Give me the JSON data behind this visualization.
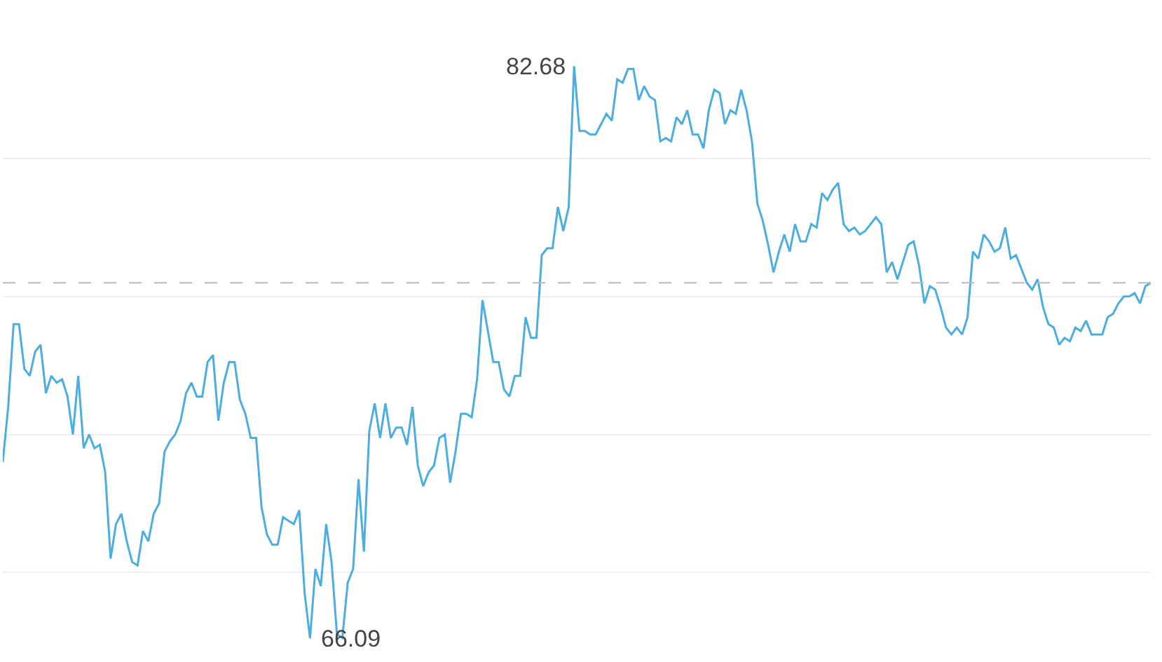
{
  "chart_data": {
    "type": "line",
    "categories": [
      null,
      null,
      null,
      null,
      null,
      null,
      null,
      null,
      null,
      null,
      null,
      null,
      null,
      null,
      null,
      null,
      null,
      null,
      null,
      null,
      null,
      null,
      null,
      null,
      null,
      null,
      null,
      null,
      null,
      null,
      null,
      null,
      null,
      null,
      null,
      null,
      null,
      null,
      null,
      null,
      null,
      null,
      null,
      null,
      null,
      null,
      null,
      null,
      null,
      null,
      null,
      null,
      null,
      null,
      null,
      null,
      null,
      null,
      null,
      null,
      null,
      null,
      null,
      null,
      null,
      null,
      null,
      null,
      null,
      null,
      null,
      null,
      null,
      null,
      null,
      null,
      null,
      null,
      null,
      null,
      null,
      null,
      null,
      null,
      null,
      null,
      null,
      null,
      null,
      null,
      null,
      null,
      null,
      null,
      null,
      null,
      null,
      null,
      null,
      null,
      null,
      null,
      null,
      null,
      null,
      null,
      null,
      null,
      null,
      null,
      null,
      null,
      null,
      null,
      null,
      null,
      null,
      null,
      null,
      null,
      null,
      null,
      null,
      null,
      null,
      null,
      null,
      null,
      null,
      null,
      null,
      null,
      null,
      null,
      null,
      null,
      null,
      null,
      null,
      null,
      null,
      null,
      null,
      null,
      null,
      null,
      null,
      null,
      null,
      null,
      null,
      null,
      null,
      null,
      null,
      null,
      null,
      null,
      null,
      null,
      null,
      null,
      null,
      null,
      null,
      null,
      null,
      null,
      null,
      null,
      null,
      null,
      null,
      null,
      null,
      null,
      null,
      null,
      null,
      null,
      null,
      null,
      null,
      null,
      null,
      null,
      null,
      null,
      null,
      null,
      null,
      null,
      null,
      null,
      null,
      null,
      null,
      null,
      null,
      null,
      null,
      null,
      null,
      null,
      null,
      null,
      null,
      null,
      null,
      null,
      null,
      null,
      null,
      null
    ],
    "series": [
      {
        "color": "#4aaee0",
        "values": [
          71.2,
          72.8,
          75.2,
          75.2,
          73.9,
          73.7,
          74.4,
          74.6,
          73.2,
          73.7,
          73.5,
          73.6,
          73.1,
          72.0,
          73.7,
          71.6,
          72.0,
          71.6,
          71.7,
          70.9,
          68.4,
          69.4,
          69.7,
          68.9,
          68.3,
          68.2,
          69.2,
          68.9,
          69.7,
          70.0,
          71.5,
          71.8,
          72.0,
          72.4,
          73.2,
          73.5,
          73.1,
          73.1,
          74.1,
          74.3,
          72.4,
          73.5,
          74.1,
          74.1,
          73.0,
          72.6,
          71.9,
          71.9,
          69.9,
          69.1,
          68.8,
          68.8,
          69.6,
          69.5,
          69.4,
          69.8,
          67.4,
          66.09,
          68.1,
          67.6,
          69.4,
          68.3,
          66.2,
          66.1,
          67.7,
          68.1,
          70.7,
          68.6,
          72.1,
          72.9,
          71.9,
          72.9,
          71.9,
          72.2,
          72.2,
          71.7,
          72.8,
          71.1,
          70.5,
          70.9,
          71.1,
          71.9,
          72.0,
          70.6,
          71.5,
          72.6,
          72.6,
          72.5,
          73.6,
          75.9,
          75.0,
          74.1,
          74.1,
          73.3,
          73.1,
          73.7,
          73.7,
          75.4,
          74.8,
          74.8,
          77.2,
          77.4,
          77.4,
          78.6,
          77.9,
          78.6,
          82.68,
          80.8,
          80.8,
          80.7,
          80.7,
          81.0,
          81.3,
          81.1,
          82.3,
          82.2,
          82.6,
          82.6,
          81.7,
          82.1,
          81.8,
          81.7,
          80.5,
          80.6,
          80.5,
          81.2,
          81.0,
          81.4,
          80.7,
          80.7,
          80.3,
          81.4,
          82.0,
          81.9,
          81.0,
          81.4,
          81.3,
          82.0,
          81.4,
          80.5,
          78.7,
          78.2,
          77.5,
          76.7,
          77.3,
          77.8,
          77.3,
          78.1,
          77.6,
          77.6,
          78.1,
          78.0,
          79.0,
          78.8,
          79.1,
          79.3,
          78.1,
          77.9,
          78.0,
          77.8,
          77.9,
          78.1,
          78.3,
          78.1,
          76.7,
          77.0,
          76.5,
          77.0,
          77.5,
          77.6,
          76.9,
          75.8,
          76.3,
          76.2,
          75.7,
          75.1,
          74.9,
          75.1,
          74.9,
          75.4,
          77.3,
          77.1,
          77.8,
          77.6,
          77.3,
          77.4,
          78.0,
          77.1,
          77.2,
          76.8,
          76.4,
          76.2,
          76.5,
          75.7,
          75.2,
          75.1,
          74.6,
          74.8,
          74.7,
          75.1,
          75.0,
          75.3,
          74.9,
          74.9,
          74.9,
          75.4,
          75.5,
          75.8,
          76.0,
          76.0,
          76.1,
          75.8,
          76.3,
          76.4
        ],
        "value_labels": [
          null,
          null,
          null,
          null,
          null,
          null,
          null,
          null,
          null,
          null,
          null,
          null,
          null,
          null,
          null,
          null,
          null,
          null,
          null,
          null,
          null,
          null,
          null,
          null,
          null,
          null,
          null,
          null,
          null,
          null,
          null,
          null,
          null,
          null,
          null,
          null,
          null,
          null,
          null,
          null,
          null,
          null,
          null,
          null,
          null,
          null,
          null,
          null,
          null,
          null,
          null,
          null,
          null,
          null,
          null,
          null,
          null,
          "66.09",
          null,
          null,
          null,
          null,
          null,
          null,
          null,
          null,
          null,
          null,
          null,
          null,
          null,
          null,
          null,
          null,
          null,
          null,
          null,
          null,
          null,
          null,
          null,
          null,
          null,
          null,
          null,
          null,
          null,
          null,
          null,
          null,
          null,
          null,
          null,
          null,
          null,
          null,
          null,
          null,
          null,
          null,
          null,
          null,
          null,
          null,
          null,
          null,
          "82.68",
          null,
          null,
          null,
          null,
          null,
          null,
          null,
          null,
          null,
          null,
          null,
          null,
          null,
          null,
          null,
          null,
          null,
          null,
          null,
          null,
          null,
          null,
          null,
          null,
          null,
          null,
          null,
          null,
          null,
          null,
          null,
          null,
          null,
          null,
          null,
          null,
          null,
          null,
          null,
          null,
          null,
          null,
          null,
          null,
          null,
          null,
          null,
          null,
          null,
          null,
          null,
          null,
          null,
          null,
          null,
          null,
          null,
          null,
          null,
          null,
          null,
          null,
          null,
          null,
          null,
          null,
          null,
          null,
          null,
          null,
          null,
          null,
          null,
          null,
          null,
          null,
          null,
          null,
          null,
          null,
          null,
          null,
          null,
          null,
          null,
          null,
          null,
          null,
          null,
          null,
          null,
          null,
          null,
          null,
          null,
          null,
          null,
          null,
          null,
          null,
          null,
          null,
          null,
          null,
          null,
          null,
          null
        ]
      }
    ],
    "ylim": [
      65.4,
      84.6
    ],
    "yticks": [
      {
        "value": 68,
        "label": null
      },
      {
        "value": 72,
        "label": null
      },
      {
        "value": 76,
        "label": null
      },
      {
        "value": 80,
        "label": null
      }
    ],
    "grid": "y",
    "marker": "none",
    "line_style": "solid",
    "ref_lines": [
      {
        "axis": "y",
        "value": 76.4,
        "color": "#bbbbbb",
        "line_style": "dashed"
      }
    ]
  }
}
